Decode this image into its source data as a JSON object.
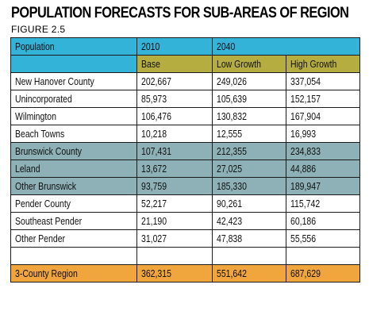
{
  "title": "POPULATION FORECASTS FOR SUB-AREAS OF REGION",
  "subtitle": "FIGURE 2.5",
  "header": {
    "col1": "Population",
    "col2": "2010",
    "col3": "2040",
    "sub_col2": "Base",
    "sub_col3": "Low Growth",
    "sub_col4": "High Growth"
  },
  "colors": {
    "header_blue": "#34b3d8",
    "header_olive": "#b5ad3f",
    "group_gray_teal": "#8db1b6",
    "total_orange": "#f0a53d"
  },
  "rows": [
    {
      "name": "New Hanover County",
      "base": "202,667",
      "low": "249,026",
      "high": "337,054",
      "style": "plain"
    },
    {
      "name": "Unincorporated",
      "base": "85,973",
      "low": "105,639",
      "high": "152,157",
      "style": "plain"
    },
    {
      "name": "Wilmington",
      "base": "106,476",
      "low": "130,832",
      "high": "167,904",
      "style": "plain"
    },
    {
      "name": "Beach Towns",
      "base": "10,218",
      "low": "12,555",
      "high": "16,993",
      "style": "plain"
    },
    {
      "name": "Brunswick County",
      "base": "107,431",
      "low": "212,355",
      "high": "234,833",
      "style": "group"
    },
    {
      "name": "Leland",
      "base": "13,672",
      "low": "27,025",
      "high": "44,886",
      "style": "group"
    },
    {
      "name": "Other Brunswick",
      "base": "93,759",
      "low": "185,330",
      "high": "189,947",
      "style": "group"
    },
    {
      "name": "Pender County",
      "base": "52,217",
      "low": "90,261",
      "high": "115,742",
      "style": "plain"
    },
    {
      "name": "Southeast Pender",
      "base": "21,190",
      "low": "42,423",
      "high": "60,186",
      "style": "plain"
    },
    {
      "name": "Other Pender",
      "base": "31,027",
      "low": "47,838",
      "high": "55,556",
      "style": "plain"
    }
  ],
  "total": {
    "name": "3-County Region",
    "base": "362,315",
    "low": "551,642",
    "high": "687,629"
  }
}
